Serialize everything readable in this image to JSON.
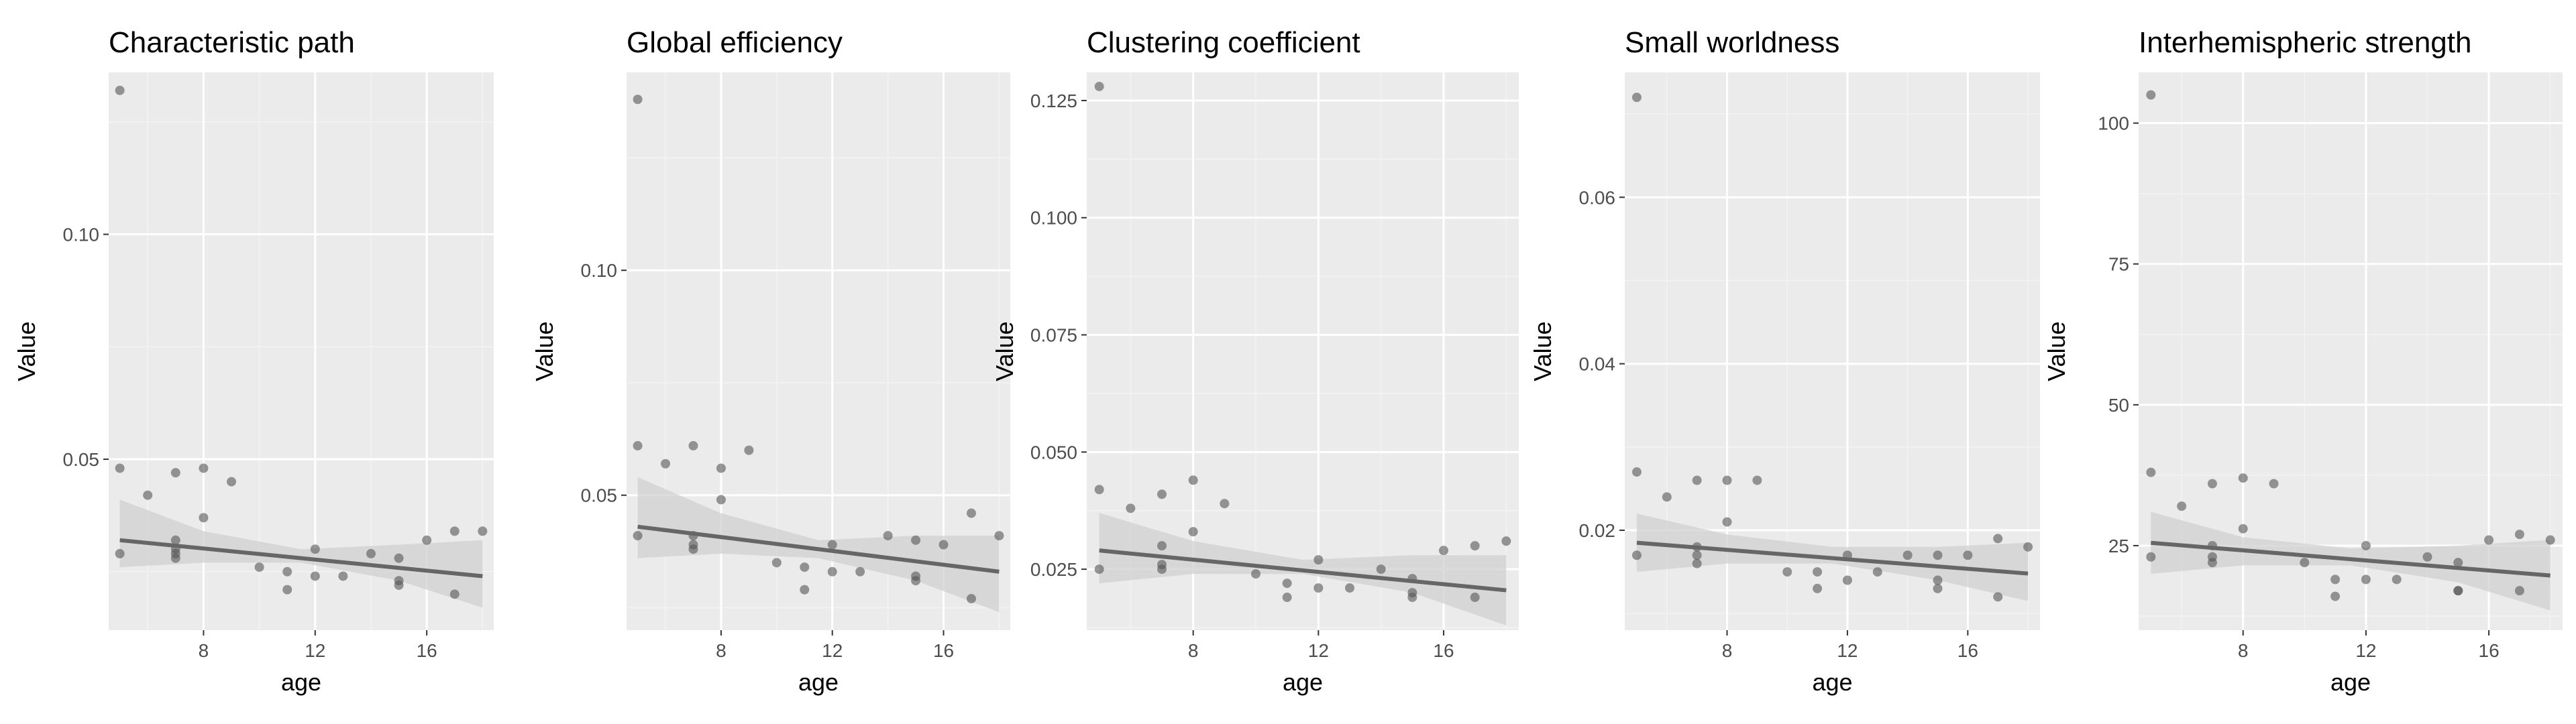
{
  "style": {
    "panel_bg": "#ebebeb",
    "grid_major": "#ffffff",
    "grid_minor": "#f3f3f3",
    "point_color": "#555555",
    "line_color": "#666666",
    "ribbon_color": "#d0d0d0"
  },
  "chart_data": [
    {
      "type": "scatter",
      "title": "Characteristic path",
      "xlabel": "age",
      "ylabel": "Value",
      "xlim": [
        4.6,
        18.4
      ],
      "ylim": [
        0.012,
        0.136
      ],
      "xticks": [
        8,
        12,
        16
      ],
      "xtick_labels": [
        "8",
        "12",
        "16"
      ],
      "yticks": [
        0.05,
        0.1
      ],
      "ytick_labels": [
        "0.05",
        "0.10"
      ],
      "points": [
        [
          5,
          0.132
        ],
        [
          5,
          0.048
        ],
        [
          5,
          0.029
        ],
        [
          6,
          0.042
        ],
        [
          7,
          0.047
        ],
        [
          7,
          0.032
        ],
        [
          7,
          0.03
        ],
        [
          7,
          0.029
        ],
        [
          7,
          0.028
        ],
        [
          8,
          0.048
        ],
        [
          8,
          0.037
        ],
        [
          9,
          0.045
        ],
        [
          10,
          0.026
        ],
        [
          11,
          0.025
        ],
        [
          11,
          0.021
        ],
        [
          12,
          0.03
        ],
        [
          12,
          0.024
        ],
        [
          13,
          0.024
        ],
        [
          14,
          0.029
        ],
        [
          15,
          0.028
        ],
        [
          15,
          0.023
        ],
        [
          15,
          0.022
        ],
        [
          16,
          0.032
        ],
        [
          17,
          0.034
        ],
        [
          17,
          0.02
        ],
        [
          18,
          0.034
        ]
      ],
      "fit": {
        "x": [
          5,
          18
        ],
        "y": [
          0.032,
          0.024
        ]
      },
      "ci_lower": [
        [
          5,
          0.026
        ],
        [
          8,
          0.027
        ],
        [
          11.5,
          0.027
        ],
        [
          15,
          0.023
        ],
        [
          18,
          0.017
        ]
      ],
      "ci_upper": [
        [
          5,
          0.041
        ],
        [
          8,
          0.034
        ],
        [
          11.5,
          0.03
        ],
        [
          15,
          0.031
        ],
        [
          18,
          0.032
        ]
      ]
    },
    {
      "type": "scatter",
      "title": "Global efficiency",
      "xlabel": "age",
      "ylabel": "Value",
      "xlim": [
        4.6,
        18.4
      ],
      "ylim": [
        0.02,
        0.144
      ],
      "xticks": [
        8,
        12,
        16
      ],
      "xtick_labels": [
        "8",
        "12",
        "16"
      ],
      "yticks": [
        0.05,
        0.1
      ],
      "ytick_labels": [
        "0.05",
        "0.10"
      ],
      "points": [
        [
          5,
          0.138
        ],
        [
          5,
          0.061
        ],
        [
          5,
          0.041
        ],
        [
          6,
          0.057
        ],
        [
          7,
          0.061
        ],
        [
          7,
          0.041
        ],
        [
          7,
          0.039
        ],
        [
          7,
          0.038
        ],
        [
          8,
          0.056
        ],
        [
          8,
          0.049
        ],
        [
          9,
          0.06
        ],
        [
          10,
          0.035
        ],
        [
          11,
          0.034
        ],
        [
          11,
          0.029
        ],
        [
          12,
          0.039
        ],
        [
          12,
          0.033
        ],
        [
          13,
          0.033
        ],
        [
          14,
          0.041
        ],
        [
          15,
          0.04
        ],
        [
          15,
          0.032
        ],
        [
          15,
          0.031
        ],
        [
          16,
          0.039
        ],
        [
          17,
          0.046
        ],
        [
          17,
          0.027
        ],
        [
          18,
          0.041
        ]
      ],
      "fit": {
        "x": [
          5,
          18
        ],
        "y": [
          0.043,
          0.033
        ]
      },
      "ci_lower": [
        [
          5,
          0.036
        ],
        [
          8,
          0.037
        ],
        [
          11.5,
          0.036
        ],
        [
          15,
          0.031
        ],
        [
          18,
          0.024
        ]
      ],
      "ci_upper": [
        [
          5,
          0.054
        ],
        [
          8,
          0.046
        ],
        [
          11.5,
          0.04
        ],
        [
          15,
          0.041
        ],
        [
          18,
          0.041
        ]
      ]
    },
    {
      "type": "scatter",
      "title": "Clustering coefficient",
      "xlabel": "age",
      "ylabel": "Value",
      "xlim": [
        4.6,
        18.4
      ],
      "ylim": [
        0.012,
        0.131
      ],
      "xticks": [
        8,
        12,
        16
      ],
      "xtick_labels": [
        "8",
        "12",
        "16"
      ],
      "yticks": [
        0.025,
        0.05,
        0.075,
        0.1,
        0.125
      ],
      "ytick_labels": [
        "0.025",
        "0.050",
        "0.075",
        "0.100",
        "0.125"
      ],
      "points": [
        [
          5,
          0.128
        ],
        [
          5,
          0.042
        ],
        [
          5,
          0.025
        ],
        [
          6,
          0.038
        ],
        [
          7,
          0.041
        ],
        [
          7,
          0.03
        ],
        [
          7,
          0.026
        ],
        [
          7,
          0.025
        ],
        [
          8,
          0.044
        ],
        [
          8,
          0.033
        ],
        [
          9,
          0.039
        ],
        [
          10,
          0.024
        ],
        [
          11,
          0.022
        ],
        [
          11,
          0.019
        ],
        [
          12,
          0.027
        ],
        [
          12,
          0.021
        ],
        [
          13,
          0.021
        ],
        [
          14,
          0.025
        ],
        [
          15,
          0.023
        ],
        [
          15,
          0.02
        ],
        [
          15,
          0.019
        ],
        [
          16,
          0.029
        ],
        [
          17,
          0.03
        ],
        [
          17,
          0.019
        ],
        [
          18,
          0.031
        ]
      ],
      "fit": {
        "x": [
          5,
          18
        ],
        "y": [
          0.029,
          0.0205
        ]
      },
      "ci_lower": [
        [
          5,
          0.022
        ],
        [
          8,
          0.024
        ],
        [
          11.5,
          0.024
        ],
        [
          15,
          0.02
        ],
        [
          18,
          0.013
        ]
      ],
      "ci_upper": [
        [
          5,
          0.037
        ],
        [
          8,
          0.031
        ],
        [
          11.5,
          0.027
        ],
        [
          15,
          0.028
        ],
        [
          18,
          0.028
        ]
      ]
    },
    {
      "type": "scatter",
      "title": "Small worldness",
      "xlabel": "age",
      "ylabel": "Value",
      "xlim": [
        4.6,
        18.4
      ],
      "ylim": [
        0.008,
        0.075
      ],
      "xticks": [
        8,
        12,
        16
      ],
      "xtick_labels": [
        "8",
        "12",
        "16"
      ],
      "yticks": [
        0.02,
        0.04,
        0.06
      ],
      "ytick_labels": [
        "0.02",
        "0.04",
        "0.06"
      ],
      "points": [
        [
          5,
          0.072
        ],
        [
          5,
          0.027
        ],
        [
          5,
          0.017
        ],
        [
          6,
          0.024
        ],
        [
          7,
          0.026
        ],
        [
          7,
          0.018
        ],
        [
          7,
          0.017
        ],
        [
          7,
          0.016
        ],
        [
          8,
          0.026
        ],
        [
          8,
          0.021
        ],
        [
          9,
          0.026
        ],
        [
          10,
          0.015
        ],
        [
          11,
          0.015
        ],
        [
          11,
          0.013
        ],
        [
          12,
          0.017
        ],
        [
          12,
          0.014
        ],
        [
          13,
          0.015
        ],
        [
          14,
          0.017
        ],
        [
          15,
          0.017
        ],
        [
          15,
          0.014
        ],
        [
          15,
          0.013
        ],
        [
          16,
          0.017
        ],
        [
          17,
          0.019
        ],
        [
          17,
          0.012
        ],
        [
          18,
          0.018
        ]
      ],
      "fit": {
        "x": [
          5,
          18
        ],
        "y": [
          0.0185,
          0.0148
        ]
      },
      "ci_lower": [
        [
          5,
          0.015
        ],
        [
          8,
          0.016
        ],
        [
          11.5,
          0.016
        ],
        [
          15,
          0.014
        ],
        [
          18,
          0.0115
        ]
      ],
      "ci_upper": [
        [
          5,
          0.022
        ],
        [
          8,
          0.0195
        ],
        [
          11.5,
          0.018
        ],
        [
          15,
          0.018
        ],
        [
          18,
          0.0185
        ]
      ]
    },
    {
      "type": "scatter",
      "title": "Interhemispheric strength",
      "xlabel": "age",
      "ylabel": "Value",
      "xlim": [
        4.6,
        18.4
      ],
      "ylim": [
        10,
        109
      ],
      "xticks": [
        8,
        12,
        16
      ],
      "xtick_labels": [
        "8",
        "12",
        "16"
      ],
      "yticks": [
        25,
        50,
        75,
        100
      ],
      "ytick_labels": [
        "25",
        "50",
        "75",
        "100"
      ],
      "points": [
        [
          5,
          105
        ],
        [
          5,
          38
        ],
        [
          5,
          23
        ],
        [
          6,
          32
        ],
        [
          7,
          36
        ],
        [
          7,
          25
        ],
        [
          7,
          23
        ],
        [
          7,
          22
        ],
        [
          8,
          37
        ],
        [
          8,
          28
        ],
        [
          9,
          36
        ],
        [
          10,
          22
        ],
        [
          11,
          19
        ],
        [
          11,
          16
        ],
        [
          12,
          25
        ],
        [
          12,
          19
        ],
        [
          13,
          19
        ],
        [
          14,
          23
        ],
        [
          15,
          22
        ],
        [
          15,
          17
        ],
        [
          15,
          17
        ],
        [
          16,
          26
        ],
        [
          17,
          27
        ],
        [
          17,
          17
        ],
        [
          18,
          26
        ]
      ],
      "fit": {
        "x": [
          5,
          18
        ],
        "y": [
          25.5,
          19.7
        ]
      },
      "ci_lower": [
        [
          5,
          20
        ],
        [
          8,
          21.5
        ],
        [
          11.5,
          21.5
        ],
        [
          15,
          18.5
        ],
        [
          18,
          13.5
        ]
      ],
      "ci_upper": [
        [
          5,
          31
        ],
        [
          8,
          26.5
        ],
        [
          11.5,
          24.5
        ],
        [
          15,
          25
        ],
        [
          18,
          26
        ]
      ]
    }
  ]
}
